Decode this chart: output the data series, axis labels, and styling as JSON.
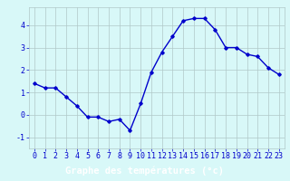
{
  "hours": [
    0,
    1,
    2,
    3,
    4,
    5,
    6,
    7,
    8,
    9,
    10,
    11,
    12,
    13,
    14,
    15,
    16,
    17,
    18,
    19,
    20,
    21,
    22,
    23
  ],
  "temps": [
    1.4,
    1.2,
    1.2,
    0.8,
    0.4,
    -0.1,
    -0.1,
    -0.3,
    -0.2,
    -0.7,
    0.5,
    1.9,
    2.8,
    3.5,
    4.2,
    4.3,
    4.3,
    3.8,
    3.0,
    3.0,
    2.7,
    2.6,
    2.1,
    1.8
  ],
  "line_color": "#0000cc",
  "marker": "D",
  "markersize": 1.8,
  "linewidth": 1.0,
  "bg_color": "#d8f8f8",
  "grid_color": "#b0c8c8",
  "xlabel": "Graphe des températures (°c)",
  "xlabel_bg": "#0000cc",
  "xlabel_color": "#ffffff",
  "ylim": [
    -1.5,
    4.8
  ],
  "yticks": [
    -1,
    0,
    1,
    2,
    3,
    4
  ],
  "tick_fontsize": 6.0,
  "xlabel_fontsize": 7.5
}
